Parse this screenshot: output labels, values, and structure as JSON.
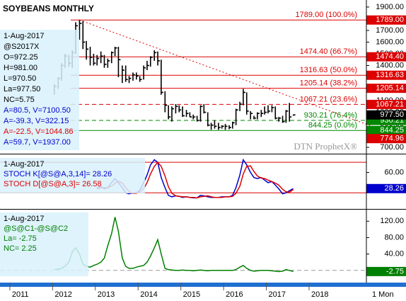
{
  "chart_data": [
    {
      "type": "hlc",
      "title": "SOYBEANS MONTHLY",
      "watermark": "DTN ProphetX®",
      "info_lines": [
        {
          "text": "1-Aug-2017",
          "color": "#000000"
        },
        {
          "text": "@S2017X",
          "color": "#000000"
        },
        {
          "text": "O=972.25",
          "color": "#000000"
        },
        {
          "text": "H=981.00",
          "color": "#000000"
        },
        {
          "text": "L=970.50",
          "color": "#000000"
        },
        {
          "text": "La=977.50",
          "color": "#000000"
        },
        {
          "text": "NC=5.75",
          "color": "#000000"
        },
        {
          "text": "A=80.5, V=7100.50",
          "color": "#0000cc"
        },
        {
          "text": "A=-39.3, V=322.15",
          "color": "#0000cc"
        },
        {
          "text": "A=-22.5, V=1044.86",
          "color": "#dd0000"
        },
        {
          "text": "A=59.7, V=1937.00",
          "color": "#0000cc"
        }
      ],
      "x": [
        2012.04,
        2012.13,
        2012.21,
        2012.29,
        2012.38,
        2012.46,
        2012.54,
        2012.63,
        2012.71,
        2012.79,
        2012.88,
        2012.96,
        2013.04,
        2013.13,
        2013.21,
        2013.29,
        2013.38,
        2013.46,
        2013.54,
        2013.63,
        2013.71,
        2013.79,
        2013.88,
        2013.96,
        2014.04,
        2014.13,
        2014.21,
        2014.29,
        2014.38,
        2014.46,
        2014.54,
        2014.63,
        2014.71,
        2014.79,
        2014.88,
        2014.96,
        2015.04,
        2015.13,
        2015.21,
        2015.29,
        2015.38,
        2015.46,
        2015.54,
        2015.63,
        2015.71,
        2015.79,
        2015.88,
        2015.96,
        2016.04,
        2016.13,
        2016.21,
        2016.29,
        2016.38,
        2016.46,
        2016.54,
        2016.63,
        2016.71,
        2016.79,
        2016.88,
        2016.96,
        2017.04,
        2017.13,
        2017.21,
        2017.29,
        2017.38,
        2017.46,
        2017.54,
        2017.63
      ],
      "highs": [
        1240,
        1300,
        1420,
        1500,
        1490,
        1530,
        1770,
        1789,
        1780,
        1610,
        1560,
        1500,
        1490,
        1520,
        1490,
        1460,
        1520,
        1560,
        1560,
        1400,
        1400,
        1310,
        1340,
        1340,
        1310,
        1400,
        1440,
        1480,
        1530,
        1520,
        1450,
        1180,
        1060,
        1050,
        1070,
        1060,
        1050,
        1020,
        1000,
        980,
        970,
        1060,
        1070,
        1000,
        910,
        930,
        910,
        890,
        900,
        890,
        920,
        1030,
        1090,
        1200,
        1170,
        1010,
        970,
        1000,
        1020,
        1050,
        1060,
        1060,
        1050,
        960,
        970,
        1020,
        1080,
        981
      ],
      "lows": [
        1150,
        1200,
        1270,
        1380,
        1390,
        1380,
        1500,
        1620,
        1540,
        1450,
        1400,
        1400,
        1400,
        1420,
        1380,
        1380,
        1420,
        1480,
        1300,
        1250,
        1260,
        1250,
        1270,
        1280,
        1260,
        1280,
        1360,
        1390,
        1440,
        1400,
        1150,
        1000,
        940,
        920,
        990,
        1000,
        960,
        960,
        960,
        940,
        920,
        920,
        990,
        880,
        850,
        860,
        850,
        860,
        850,
        855,
        860,
        890,
        1010,
        1060,
        980,
        940,
        940,
        940,
        960,
        980,
        990,
        1000,
        940,
        920,
        910,
        910,
        920,
        970.5
      ],
      "closes": [
        1220,
        1290,
        1400,
        1480,
        1420,
        1510,
        1740,
        1760,
        1600,
        1540,
        1470,
        1420,
        1460,
        1480,
        1410,
        1440,
        1510,
        1550,
        1450,
        1360,
        1280,
        1290,
        1320,
        1310,
        1280,
        1380,
        1400,
        1470,
        1510,
        1440,
        1170,
        1060,
        960,
        1030,
        1050,
        1020,
        970,
        990,
        960,
        960,
        930,
        1050,
        1000,
        890,
        890,
        880,
        870,
        880,
        880,
        870,
        910,
        1020,
        1070,
        1170,
        1010,
        990,
        950,
        990,
        990,
        1000,
        1010,
        1040,
        950,
        950,
        920,
        1010,
        960,
        977.5
      ],
      "last_label": "977.50",
      "color": "#000000",
      "levels": [
        {
          "value": 1789,
          "label": "1789.00 (100.0%)",
          "axis_label": "1789.00",
          "color": "#dd0000",
          "dashed": false
        },
        {
          "value": 1474.4,
          "label": "1474.40 (66.7%)",
          "axis_label": "1474.40",
          "color": "#dd0000",
          "dashed": false
        },
        {
          "value": 1316.63,
          "label": "1316.63 (50.0%)",
          "axis_label": "1316.63",
          "color": "#dd0000",
          "dashed": false
        },
        {
          "value": 1205.14,
          "label": "1205.14 (38.2%)",
          "axis_label": "1205.14",
          "color": "#dd0000",
          "dashed": false
        },
        {
          "value": 1067.21,
          "label": "1067.21 (23.6%)",
          "axis_label": "1067.21",
          "color": "#dd0000",
          "dashed": true
        },
        {
          "value": 930.21,
          "label": "930.21 (76.4%)",
          "axis_label": "930.21",
          "color": "#008800",
          "dashed": true
        },
        {
          "value": 844.25,
          "label": "844.25 (0.0%)",
          "axis_label": "844.25",
          "color": "#008800",
          "dashed": false
        }
      ],
      "trendline": {
        "start_x": 2012.63,
        "start_value": 1789,
        "end_value": 774.96,
        "end_label": "774.96",
        "color": "#dd0000"
      },
      "ylim": [
        658,
        1948
      ],
      "yticks": [
        {
          "value": 1900,
          "label": "1900.00"
        },
        {
          "value": 1800,
          "label": "1800.00"
        },
        {
          "value": 1700,
          "label": "1700.00"
        },
        {
          "value": 1600,
          "label": "1600.00"
        },
        {
          "value": 1500,
          "label": "1500.00"
        },
        {
          "value": 1400,
          "label": "1400.00"
        },
        {
          "value": 1300,
          "label": "1300.00"
        },
        {
          "value": 1200,
          "label": "1200.00"
        },
        {
          "value": 1100,
          "label": "1100.00"
        },
        {
          "value": 1000,
          "label": "1000.00"
        },
        {
          "value": 900,
          "label": "900.00"
        },
        {
          "value": 800,
          "label": "800.00"
        },
        {
          "value": 700,
          "label": "700.00"
        }
      ]
    },
    {
      "type": "line",
      "info_lines": [
        {
          "text": "1-Aug-2017",
          "color": "#000000"
        }
      ],
      "x": [
        2012.04,
        2012.13,
        2012.21,
        2012.29,
        2012.38,
        2012.46,
        2012.54,
        2012.63,
        2012.71,
        2012.79,
        2012.88,
        2012.96,
        2013.04,
        2013.13,
        2013.21,
        2013.29,
        2013.38,
        2013.46,
        2013.54,
        2013.63,
        2013.71,
        2013.79,
        2013.88,
        2013.96,
        2014.04,
        2014.13,
        2014.21,
        2014.29,
        2014.38,
        2014.46,
        2014.54,
        2014.63,
        2014.71,
        2014.79,
        2014.88,
        2014.96,
        2015.04,
        2015.13,
        2015.21,
        2015.29,
        2015.38,
        2015.46,
        2015.54,
        2015.63,
        2015.71,
        2015.79,
        2015.88,
        2015.96,
        2016.04,
        2016.13,
        2016.21,
        2016.29,
        2016.38,
        2016.46,
        2016.54,
        2016.63,
        2016.71,
        2016.79,
        2016.88,
        2016.96,
        2017.04,
        2017.13,
        2017.21,
        2017.29,
        2017.38,
        2017.46,
        2017.54,
        2017.63
      ],
      "series": [
        {
          "name": "STOCH K[@S@A,3,14]= 28.26",
          "color": "#0000cc",
          "values": [
            null,
            null,
            null,
            null,
            null,
            null,
            null,
            null,
            null,
            null,
            null,
            null,
            30,
            32,
            28,
            30,
            40,
            48,
            40,
            30,
            20,
            18,
            20,
            20,
            25,
            40,
            55,
            75,
            85,
            80,
            50,
            30,
            15,
            12,
            14,
            13,
            11,
            12,
            11,
            10,
            10,
            15,
            14,
            12,
            11,
            11,
            11,
            12,
            12,
            12,
            15,
            30,
            55,
            85,
            75,
            60,
            50,
            48,
            50,
            45,
            40,
            42,
            35,
            28,
            18,
            20,
            24,
            28.26
          ]
        },
        {
          "name": "STOCH D[@S@A,3]= 26.58",
          "color": "#dd0000",
          "values": [
            null,
            null,
            null,
            null,
            null,
            null,
            null,
            null,
            null,
            null,
            null,
            null,
            28,
            30,
            30,
            30,
            33,
            39,
            43,
            39,
            30,
            23,
            19,
            19,
            22,
            28,
            40,
            57,
            72,
            80,
            72,
            53,
            32,
            19,
            14,
            13,
            12,
            12,
            11,
            11,
            10,
            12,
            13,
            14,
            12,
            11,
            11,
            11,
            12,
            12,
            13,
            19,
            33,
            57,
            72,
            73,
            62,
            53,
            49,
            48,
            45,
            42,
            39,
            35,
            27,
            22,
            21,
            26.58
          ]
        }
      ],
      "levels": [
        {
          "value": 80,
          "color": "#dd0000"
        },
        {
          "value": 20,
          "color": "#dd0000"
        }
      ],
      "ylim": [
        -9,
        90
      ],
      "yticks": [
        {
          "value": 60,
          "label": "60.00"
        }
      ]
    },
    {
      "type": "line",
      "info_lines": [
        {
          "text": "1-Aug-2017",
          "color": "#000000"
        },
        {
          "text": "La= -2.75",
          "color": "#008000"
        },
        {
          "text": "NC= 2.25",
          "color": "#008000"
        }
      ],
      "x": [
        2012.04,
        2012.13,
        2012.21,
        2012.29,
        2012.38,
        2012.46,
        2012.54,
        2012.63,
        2012.71,
        2012.79,
        2012.88,
        2012.96,
        2013.04,
        2013.13,
        2013.21,
        2013.29,
        2013.38,
        2013.46,
        2013.54,
        2013.63,
        2013.71,
        2013.79,
        2013.88,
        2013.96,
        2014.04,
        2014.13,
        2014.21,
        2014.29,
        2014.38,
        2014.46,
        2014.54,
        2014.63,
        2014.71,
        2014.79,
        2014.88,
        2014.96,
        2015.04,
        2015.13,
        2015.21,
        2015.29,
        2015.38,
        2015.46,
        2015.54,
        2015.63,
        2015.71,
        2015.79,
        2015.88,
        2015.96,
        2016.04,
        2016.13,
        2016.21,
        2016.29,
        2016.38,
        2016.46,
        2016.54,
        2016.63,
        2016.71,
        2016.79,
        2016.88,
        2016.96,
        2017.04,
        2017.13,
        2017.21,
        2017.29,
        2017.38,
        2017.46,
        2017.54,
        2017.63
      ],
      "series": [
        {
          "name": "@S@C1-@S@C2",
          "color": "#008000",
          "values": [
            2,
            3,
            5,
            10,
            20,
            45,
            55,
            40,
            15,
            10,
            8,
            12,
            15,
            20,
            30,
            60,
            90,
            130,
            95,
            30,
            10,
            5,
            5,
            8,
            10,
            12,
            20,
            35,
            55,
            75,
            40,
            5,
            2,
            1,
            0,
            0,
            1,
            0,
            0,
            -1,
            0,
            1,
            0,
            -1,
            0,
            0,
            0,
            0,
            0,
            0,
            0,
            2,
            8,
            12,
            5,
            0,
            -2,
            -1,
            0,
            0,
            0,
            -1,
            -2,
            -3,
            -2,
            2,
            0,
            -2.75
          ]
        }
      ],
      "levels": [
        {
          "value": 0,
          "color": "#999999"
        }
      ],
      "ylim": [
        -28,
        143
      ],
      "yticks": [
        {
          "value": 120,
          "label": "120.00"
        },
        {
          "value": 80,
          "label": "80.00"
        },
        {
          "value": 40,
          "label": "40.00"
        }
      ]
    }
  ],
  "x_axis": {
    "xlim": [
      2010.77,
      2019.34
    ],
    "xticks": [
      {
        "value": 2011,
        "label": "2011"
      },
      {
        "value": 2012,
        "label": "2012"
      },
      {
        "value": 2013,
        "label": "2013"
      },
      {
        "value": 2014,
        "label": "2014"
      },
      {
        "value": 2015,
        "label": "2015"
      },
      {
        "value": 2016,
        "label": "2016"
      },
      {
        "value": 2017,
        "label": "2017"
      },
      {
        "value": 2018,
        "label": "2018"
      }
    ],
    "interval": "1 Mon"
  }
}
